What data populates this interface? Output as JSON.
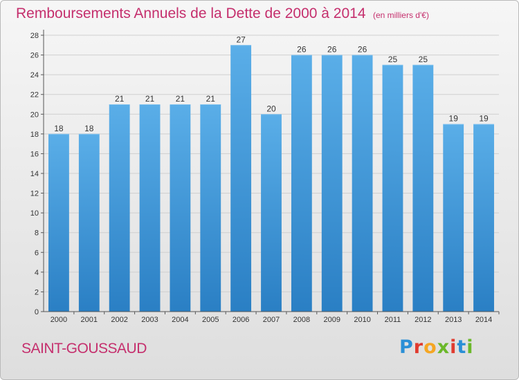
{
  "header": {
    "title": "Remboursements Annuels de la Dette de 2000 à 2014",
    "unit": "(en milliers d'€)"
  },
  "footer": {
    "commune": "SAINT-GOUSSAUD",
    "logo_letters": [
      "P",
      "r",
      "o",
      "x",
      "i",
      "t",
      "i"
    ],
    "logo_colors": [
      "#2a8fd6",
      "#e03b2f",
      "#f5a623",
      "#6bb82a",
      "#e03b2f",
      "#2a8fd6",
      "#6bb82a"
    ]
  },
  "colors": {
    "bar": "#3d98d8",
    "grid": "#cfcfcf",
    "axis": "#555555",
    "title": "#c52f6d"
  },
  "chart_data": {
    "type": "bar",
    "categories": [
      "2000",
      "2001",
      "2002",
      "2003",
      "2004",
      "2005",
      "2006",
      "2007",
      "2008",
      "2009",
      "2010",
      "2011",
      "2012",
      "2013",
      "2014"
    ],
    "values": [
      18,
      18,
      21,
      21,
      21,
      21,
      27,
      20,
      26,
      26,
      26,
      25,
      25,
      19,
      19
    ],
    "ylim": [
      0,
      28
    ],
    "yticks": [
      0,
      2,
      4,
      6,
      8,
      10,
      12,
      14,
      16,
      18,
      20,
      22,
      24,
      26,
      28
    ],
    "grid": "horizontal",
    "title": "Remboursements Annuels de la Dette de 2000 à 2014",
    "xlabel": "",
    "ylabel": ""
  }
}
